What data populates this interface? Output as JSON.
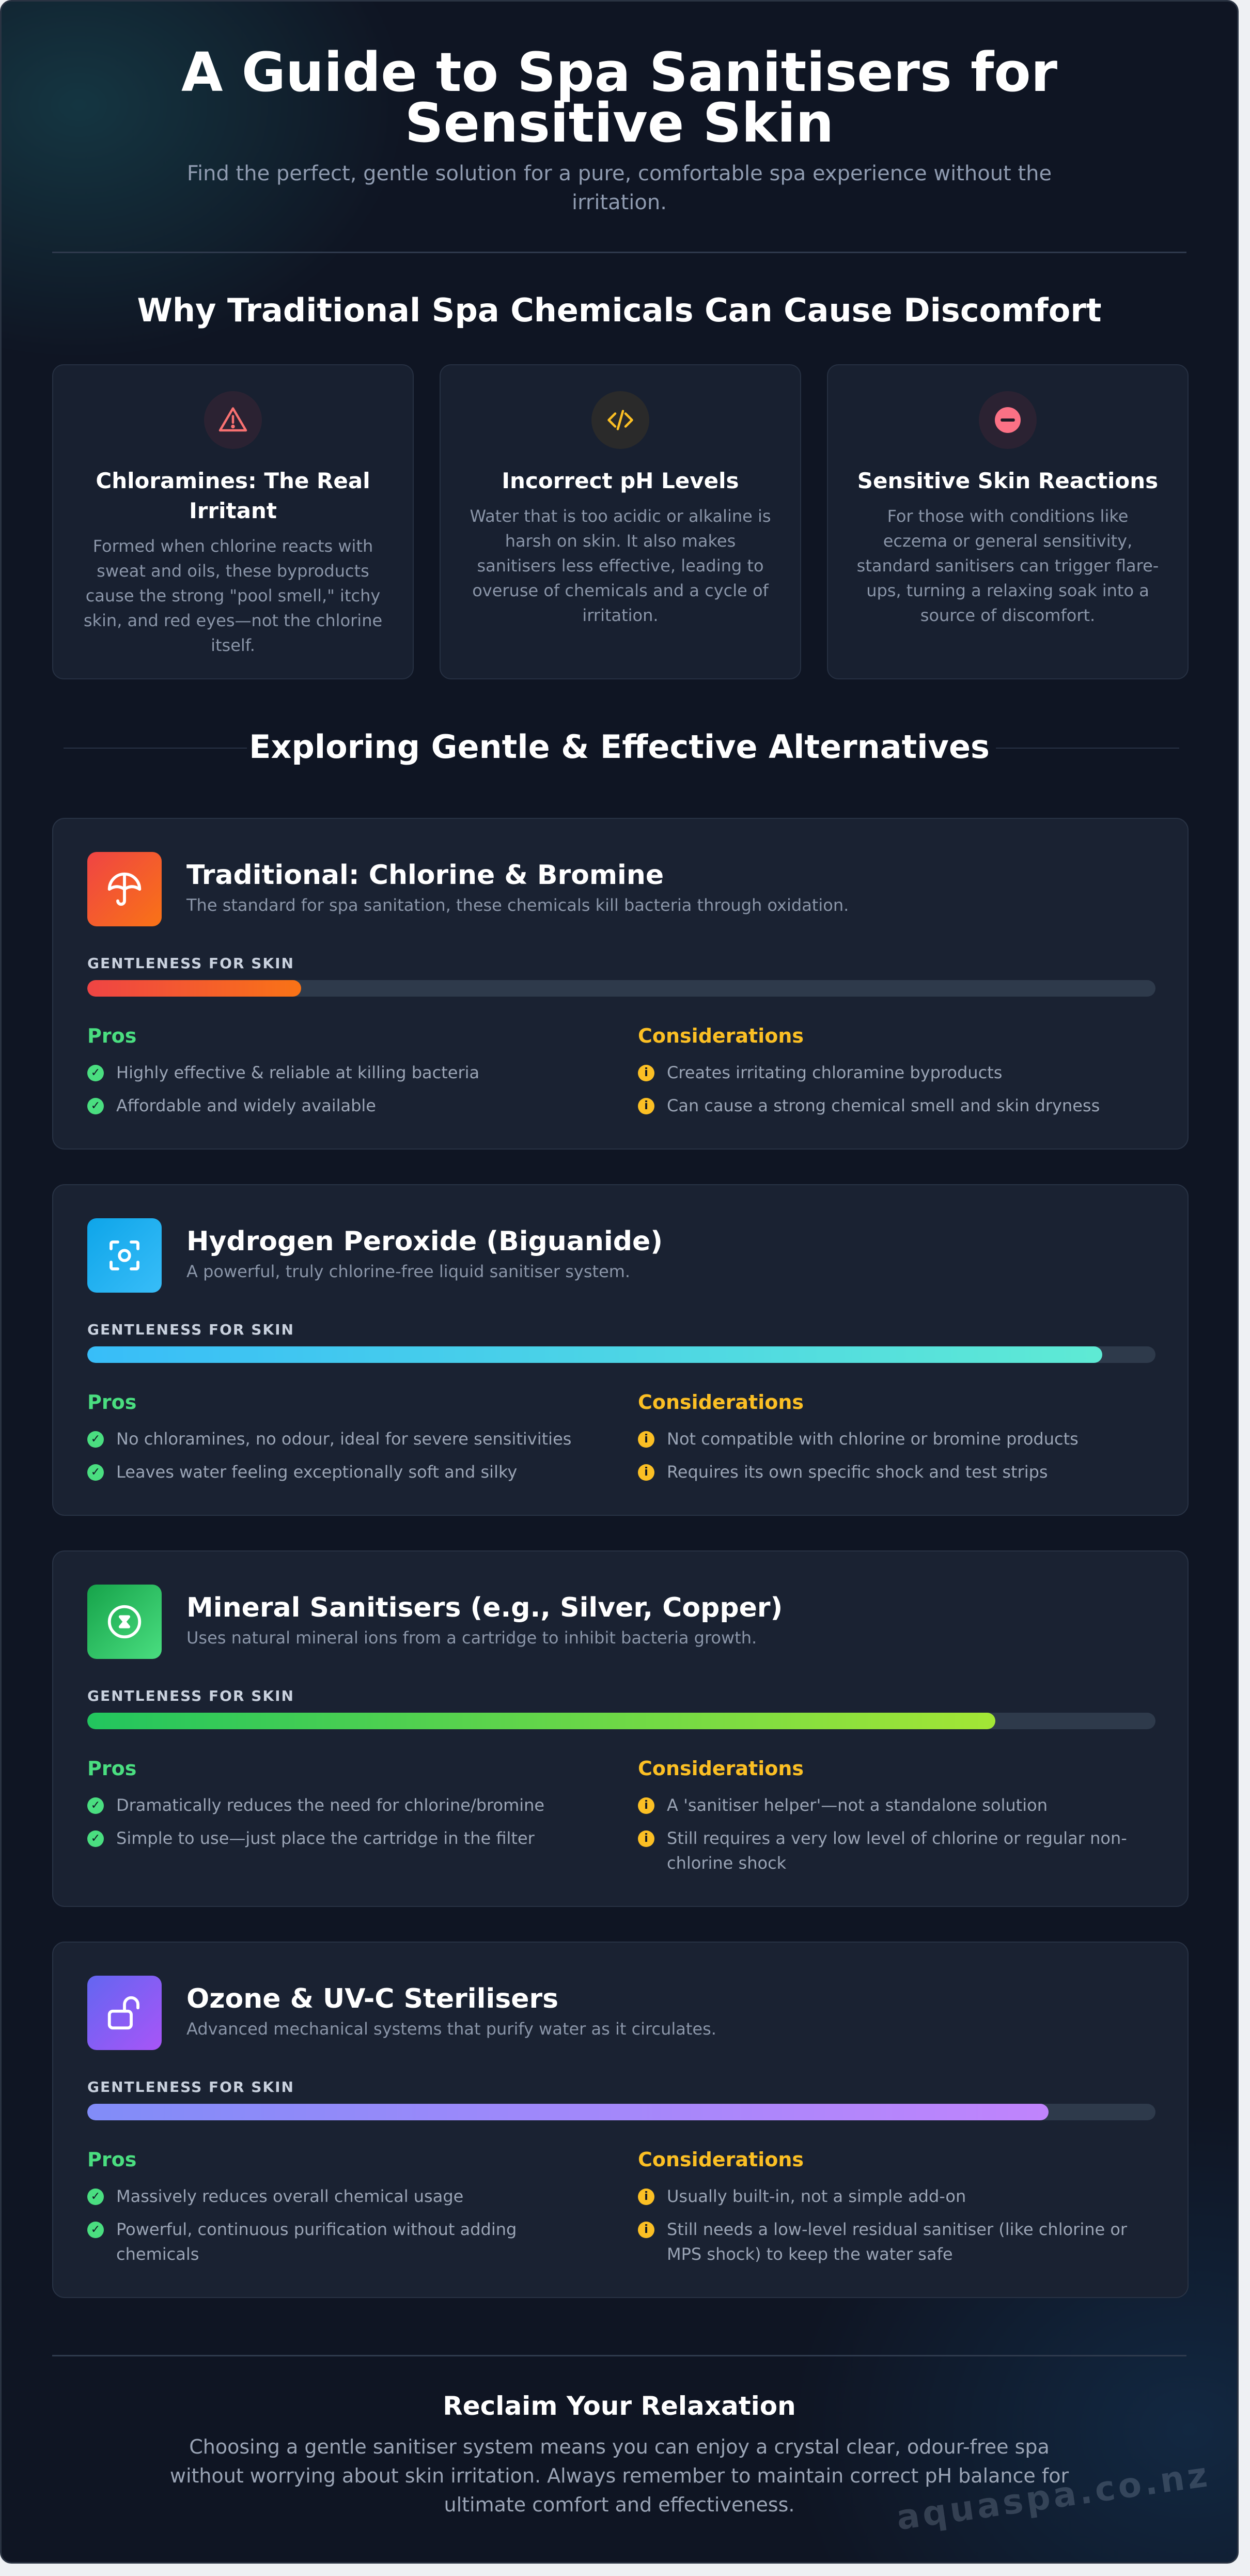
{
  "header": {
    "title": "A Guide to Spa Sanitisers for Sensitive Skin",
    "subtitle": "Find the perfect, gentle solution for a pure, comfortable spa experience without the irritation."
  },
  "problems": {
    "heading": "Why Traditional Spa Chemicals Can Cause Discomfort",
    "cards": [
      {
        "icon": "warning-triangle-icon",
        "title": "Chloramines: The Real Irritant",
        "text": "Formed when chlorine reacts with sweat and oils, these byproducts cause the strong \"pool smell,\" itchy skin, and red eyes—not the chlorine itself.",
        "color": "#f87171"
      },
      {
        "icon": "code-brackets-icon",
        "title": "Incorrect pH Levels",
        "text": "Water that is too acidic or alkaline is harsh on skin. It also makes sanitisers less effective, leading to overuse of chemicals and a cycle of irritation.",
        "color": "#fbbf24"
      },
      {
        "icon": "minus-circle-icon",
        "title": "Sensitive Skin Reactions",
        "text": "For those with conditions like eczema or general sensitivity, standard sanitisers can trigger flare-ups, turning a relaxing soak into a source of discomfort.",
        "color": "#fb7185"
      }
    ]
  },
  "alternatives": {
    "heading": "Exploring Gentle & Effective Alternatives",
    "gentleness_label": "GENTLENESS FOR SKIN",
    "pros_label": "Pros",
    "cons_label": "Considerations",
    "cards": [
      {
        "icon": "umbrella-icon",
        "name": "Traditional: Chlorine & Bromine",
        "description": "The standard for spa sanitation, these chemicals kill bacteria through oxidation.",
        "gentleness": 0.2,
        "gradient": [
          "#ef4444",
          "#f97316"
        ],
        "pros": [
          "Highly effective & reliable at killing bacteria",
          "Affordable and widely available"
        ],
        "cons": [
          "Creates irritating chloramine byproducts",
          "Can cause a strong chemical smell and skin dryness"
        ]
      },
      {
        "icon": "focus-frame-icon",
        "name": "Hydrogen Peroxide (Biguanide)",
        "description": "A powerful, truly chlorine-free liquid sanitiser system.",
        "gentleness": 0.95,
        "gradient": [
          "#38bdf8",
          "#5eead4"
        ],
        "pros": [
          "No chloramines, no odour, ideal for severe sensitivities",
          "Leaves water feeling exceptionally soft and silky"
        ],
        "cons": [
          "Not compatible with chlorine or bromine products",
          "Requires its own specific shock and test strips"
        ]
      },
      {
        "icon": "hourglass-circle-icon",
        "name": "Mineral Sanitisers (e.g., Silver, Copper)",
        "description": "Uses natural mineral ions from a cartridge to inhibit bacteria growth.",
        "gentleness": 0.85,
        "gradient": [
          "#22c55e",
          "#a3e635"
        ],
        "pros": [
          "Dramatically reduces the need for chlorine/bromine",
          "Simple to use—just place the cartridge in the filter"
        ],
        "cons": [
          "A 'sanitiser helper'—not a standalone solution",
          "Still requires a very low level of chlorine or regular non-chlorine shock"
        ]
      },
      {
        "icon": "unlock-icon",
        "name": "Ozone & UV-C Sterilisers",
        "description": "Advanced mechanical systems that purify water as it circulates.",
        "gentleness": 0.9,
        "gradient": [
          "#818cf8",
          "#c084fc"
        ],
        "pros": [
          "Massively reduces overall chemical usage",
          "Powerful, continuous purification without adding chemicals"
        ],
        "cons": [
          "Usually built-in, not a simple add-on",
          "Still needs a low-level residual sanitiser (like chlorine or MPS shock) to keep the water safe"
        ]
      }
    ]
  },
  "footer": {
    "title": "Reclaim Your Relaxation",
    "text": "Choosing a gentle sanitiser system means you can enjoy a crystal clear, odour-free spa without worrying about skin irritation. Always remember to maintain correct pH balance for ultimate comfort and effectiveness.",
    "watermark": "aquaspa.co.nz"
  }
}
